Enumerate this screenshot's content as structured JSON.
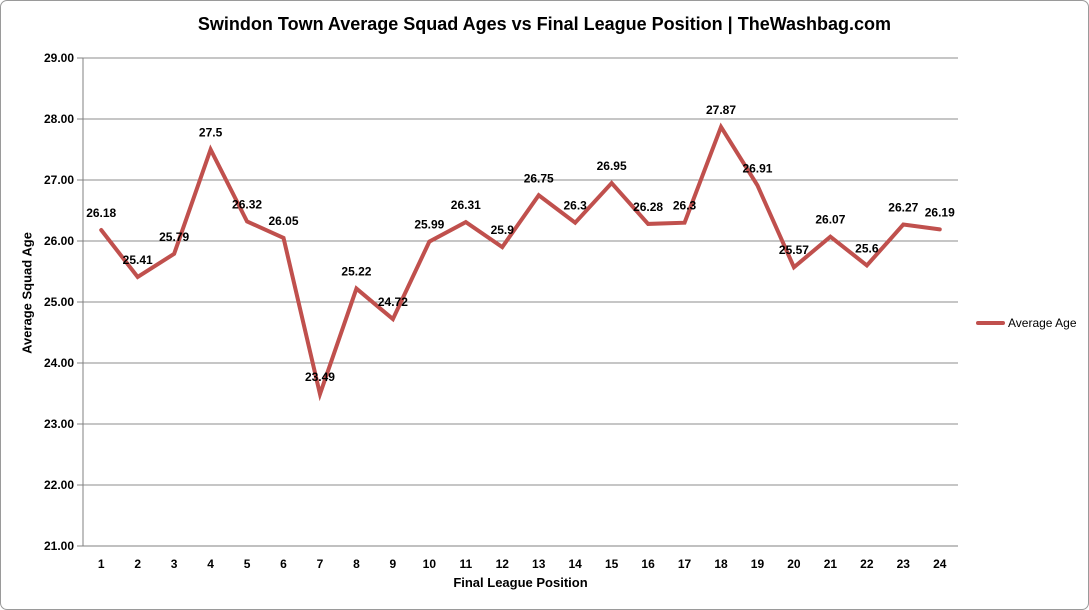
{
  "chart_data": {
    "type": "line",
    "title": "Swindon Town Average Squad Ages vs Final League Position | TheWashbag.com",
    "xlabel": "Final League Position",
    "ylabel": "Average Squad Age",
    "categories": [
      1,
      2,
      3,
      4,
      5,
      6,
      7,
      8,
      9,
      10,
      11,
      12,
      13,
      14,
      15,
      16,
      17,
      18,
      19,
      20,
      21,
      22,
      23,
      24
    ],
    "series": [
      {
        "name": "Average Age",
        "color": "#C0504D",
        "values": [
          26.18,
          25.41,
          25.79,
          27.5,
          26.32,
          26.05,
          23.49,
          25.22,
          24.72,
          25.99,
          26.31,
          25.9,
          26.75,
          26.3,
          26.95,
          26.28,
          26.3,
          27.87,
          26.91,
          25.57,
          26.07,
          25.6,
          26.27,
          26.19
        ],
        "labels": [
          "26.18",
          "25.41",
          "25.79",
          "27.5",
          "26.32",
          "26.05",
          "23.49",
          "25.22",
          "24.72",
          "25.99",
          "26.31",
          "25.9",
          "26.75",
          "26.3",
          "26.95",
          "26.28",
          "26.3",
          "27.87",
          "26.91",
          "25.57",
          "26.07",
          "25.6",
          "26.27",
          "26.19"
        ]
      }
    ],
    "ylim": [
      21,
      29
    ],
    "ytick_step": 1,
    "ytick_decimals": 2,
    "grid": true,
    "legend_position": "right",
    "gridline_color": "#8c8c8c",
    "axis_color": "#808080",
    "text_color": "#000000"
  }
}
